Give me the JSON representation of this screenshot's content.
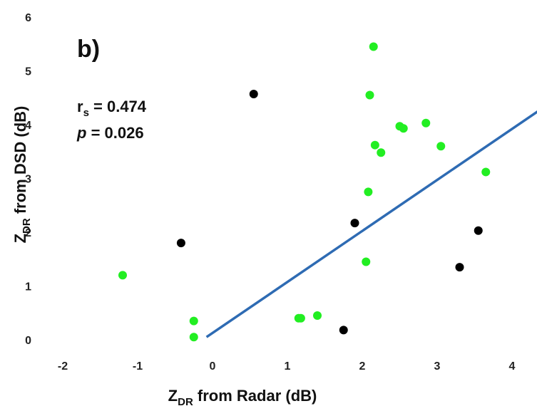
{
  "chart_data": {
    "type": "scatter",
    "panel_label": "b)",
    "xlabel": {
      "main": "Z",
      "sub": "DR",
      "rest": " from Radar (dB)"
    },
    "ylabel": {
      "main": "Z",
      "sub": "DR",
      "rest": " from DSD (dB)"
    },
    "xlim": [
      -2,
      4.4
    ],
    "ylim": [
      0,
      6
    ],
    "xticks": [
      "-2",
      "-1",
      "0",
      "1",
      "2",
      "3",
      "4"
    ],
    "yticks": [
      "0",
      "1",
      "2",
      "3",
      "4",
      "5",
      "6"
    ],
    "stats": {
      "r_main": "r",
      "r_sub": "s",
      "r_value": " = 0.474",
      "p_main": "p",
      "p_value": " = 0.026"
    },
    "colors": {
      "green": "#22ee22",
      "black": "#000000",
      "fit": "#2e6bb3"
    },
    "series": [
      {
        "color": "green",
        "points": [
          [
            -1.2,
            1.2
          ],
          [
            -0.25,
            0.35
          ],
          [
            -0.25,
            0.05
          ],
          [
            1.15,
            0.4
          ],
          [
            1.18,
            0.4
          ],
          [
            1.4,
            0.45
          ],
          [
            2.05,
            1.45
          ],
          [
            2.08,
            2.75
          ],
          [
            2.1,
            4.55
          ],
          [
            2.15,
            5.45
          ],
          [
            2.17,
            3.62
          ],
          [
            2.25,
            3.48
          ],
          [
            2.5,
            3.97
          ],
          [
            2.55,
            3.93
          ],
          [
            2.85,
            4.03
          ],
          [
            3.05,
            3.6
          ],
          [
            3.65,
            3.12
          ]
        ]
      },
      {
        "color": "black",
        "points": [
          [
            0.55,
            4.57
          ],
          [
            -0.42,
            1.8
          ],
          [
            1.75,
            0.18
          ],
          [
            1.9,
            2.17
          ],
          [
            3.3,
            1.35
          ],
          [
            3.55,
            2.03
          ]
        ]
      }
    ],
    "fit_line": {
      "x1": -0.08,
      "y1": 0.05,
      "x2": 4.4,
      "y2": 4.3
    }
  }
}
